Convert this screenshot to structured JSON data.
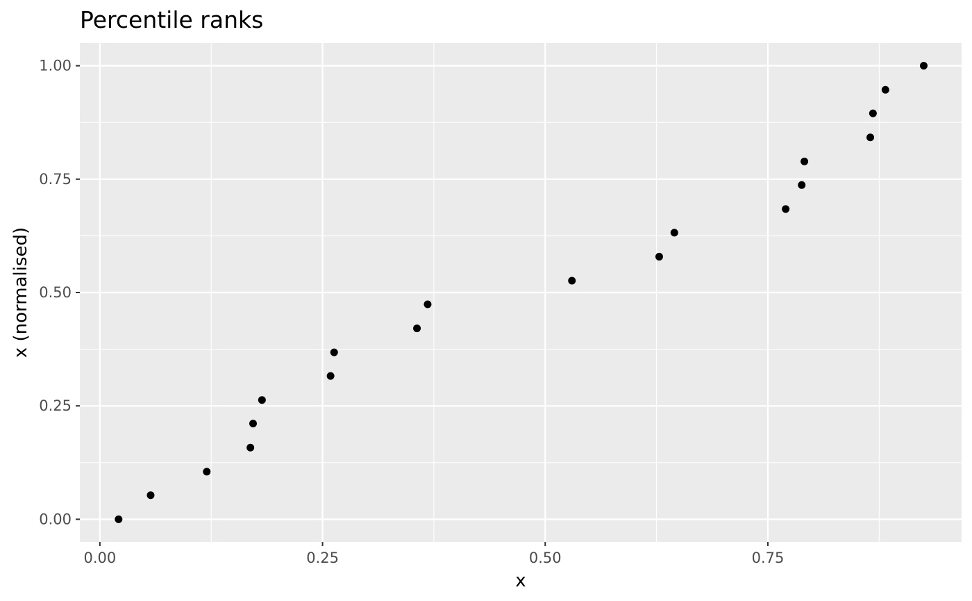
{
  "chart_data": {
    "type": "scatter",
    "title": "Percentile ranks",
    "xlabel": "x",
    "ylabel": "x (normalised)",
    "xlim": [
      -0.0225,
      0.9675
    ],
    "ylim": [
      -0.05,
      1.05
    ],
    "x_ticks": [
      0.0,
      0.25,
      0.5,
      0.75
    ],
    "x_tick_labels": [
      "0.00",
      "0.25",
      "0.50",
      "0.75"
    ],
    "x_minor_ticks": [
      0.125,
      0.375,
      0.625,
      0.875
    ],
    "y_ticks": [
      0.0,
      0.25,
      0.5,
      0.75,
      1.0
    ],
    "y_tick_labels": [
      "0.00",
      "0.25",
      "0.50",
      "0.75",
      "1.00"
    ],
    "y_minor_ticks": [
      0.125,
      0.375,
      0.625,
      0.875
    ],
    "grid": true,
    "legend": "none",
    "panel_color": "#ebebeb",
    "grid_color": "#ffffff",
    "point_color": "#000000",
    "series": [
      {
        "x": [
          0.021,
          0.057,
          0.12,
          0.169,
          0.172,
          0.182,
          0.259,
          0.263,
          0.356,
          0.368,
          0.53,
          0.628,
          0.645,
          0.77,
          0.788,
          0.791,
          0.865,
          0.868,
          0.882,
          0.925
        ],
        "y": [
          0.0,
          0.053,
          0.105,
          0.158,
          0.211,
          0.263,
          0.316,
          0.368,
          0.421,
          0.474,
          0.526,
          0.579,
          0.632,
          0.684,
          0.737,
          0.789,
          0.842,
          0.895,
          0.947,
          1.0
        ]
      }
    ]
  }
}
